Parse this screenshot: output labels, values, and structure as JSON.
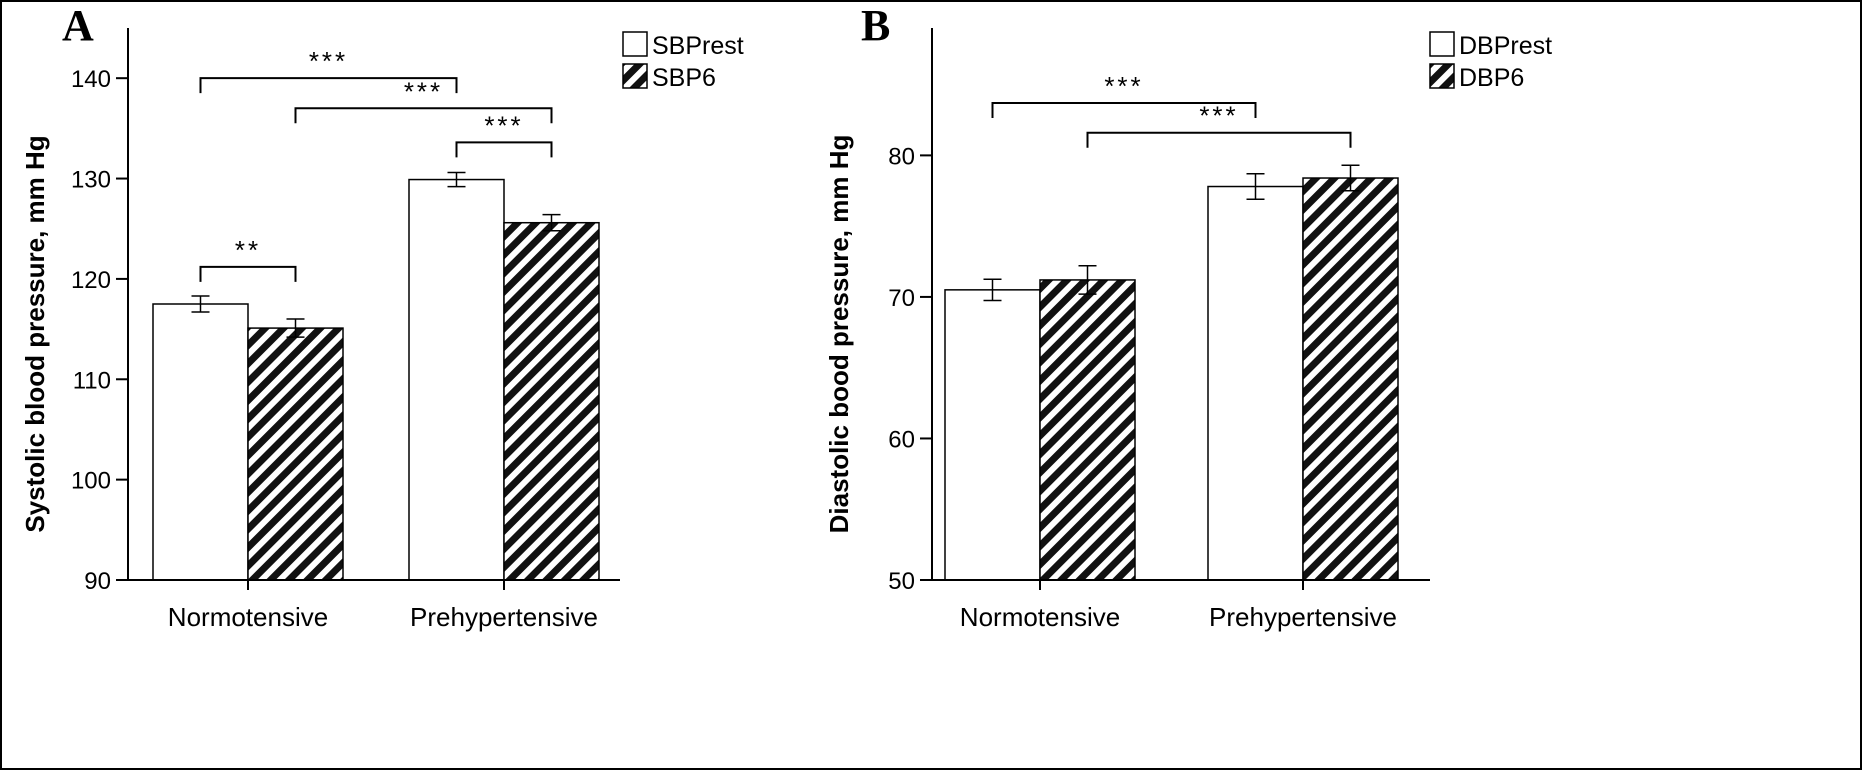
{
  "chart_data": [
    {
      "type": "bar",
      "panel_label": "A",
      "ylabel": "Systolic blood pressure, mm Hg",
      "ylim": [
        90,
        145
      ],
      "yticks": [
        90,
        100,
        110,
        120,
        130,
        140
      ],
      "categories": [
        "Normotensive",
        "Prehypertensive"
      ],
      "series": [
        {
          "name": "SBPrest",
          "pattern": "open",
          "values": [
            117.5,
            129.9
          ],
          "errors": [
            0.8,
            0.7
          ]
        },
        {
          "name": "SBP6",
          "pattern": "hatched",
          "values": [
            115.1,
            125.6
          ],
          "errors": [
            0.9,
            0.8
          ]
        }
      ],
      "legend_position": "top-right",
      "grid": false,
      "significance": [
        {
          "label": "***",
          "from": [
            0,
            0
          ],
          "to": [
            1,
            0
          ],
          "level": 140
        },
        {
          "label": "***",
          "from": [
            0,
            1
          ],
          "to": [
            1,
            1
          ],
          "level": 137
        },
        {
          "label": "***",
          "from": [
            1,
            0
          ],
          "to": [
            1,
            1
          ],
          "level": 133.6
        },
        {
          "label": "**",
          "from": [
            0,
            0
          ],
          "to": [
            0,
            1
          ],
          "level": 121.2
        }
      ]
    },
    {
      "type": "bar",
      "panel_label": "B",
      "ylabel": "Diastolic bood pressure, mm Hg",
      "ylim": [
        50,
        89
      ],
      "yticks": [
        50,
        60,
        70,
        80
      ],
      "categories": [
        "Normotensive",
        "Prehypertensive"
      ],
      "series": [
        {
          "name": "DBPrest",
          "pattern": "open",
          "values": [
            70.5,
            77.8
          ],
          "errors": [
            0.75,
            0.9
          ]
        },
        {
          "name": "DBP6",
          "pattern": "hatched",
          "values": [
            71.2,
            78.4
          ],
          "errors": [
            1.0,
            0.9
          ]
        }
      ],
      "legend_position": "top-right",
      "grid": false,
      "significance": [
        {
          "label": "***",
          "from": [
            0,
            0
          ],
          "to": [
            1,
            0
          ],
          "level": 83.7
        },
        {
          "label": "***",
          "from": [
            0,
            1
          ],
          "to": [
            1,
            1
          ],
          "level": 81.6
        }
      ]
    }
  ]
}
